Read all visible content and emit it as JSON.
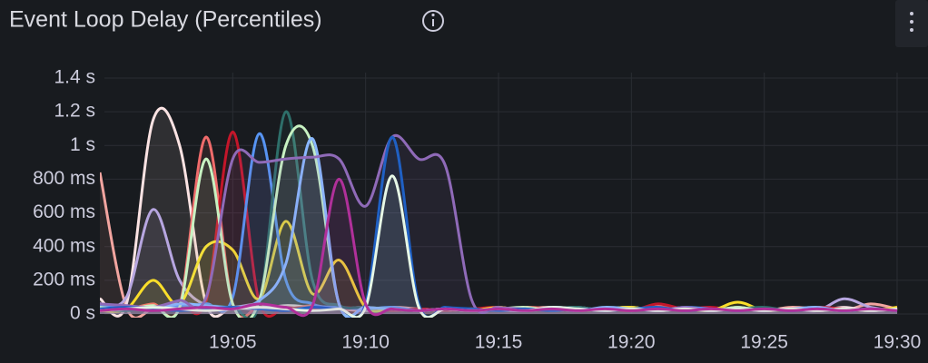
{
  "chart_data": {
    "type": "line",
    "title": "Event Loop Delay (Percentiles)",
    "x": [
      "19:00",
      "19:01",
      "19:02",
      "19:03",
      "19:04",
      "19:05",
      "19:06",
      "19:07",
      "19:08",
      "19:09",
      "19:10",
      "19:11",
      "19:12",
      "19:13",
      "19:14",
      "19:15",
      "19:16",
      "19:17",
      "19:18",
      "19:19",
      "19:20",
      "19:21",
      "19:22",
      "19:23",
      "19:24",
      "19:25",
      "19:26",
      "19:27",
      "19:28",
      "19:29",
      "19:30"
    ],
    "xticks": [
      "19:05",
      "19:10",
      "19:15",
      "19:20",
      "19:25",
      "19:30"
    ],
    "ylim": [
      0,
      1400
    ],
    "yticks": [
      {
        "value": 0,
        "label": "0 s"
      },
      {
        "value": 200,
        "label": "200 ms"
      },
      {
        "value": 400,
        "label": "400 ms"
      },
      {
        "value": 600,
        "label": "600 ms"
      },
      {
        "value": 800,
        "label": "800 ms"
      },
      {
        "value": 1000,
        "label": "1 s"
      },
      {
        "value": 1200,
        "label": "1.2 s"
      },
      {
        "value": 1400,
        "label": "1.4 s"
      }
    ],
    "grid": true,
    "series": [
      {
        "color": "#f2a5a0",
        "values": [
          840,
          40,
          30,
          60,
          40,
          30,
          50,
          30,
          40,
          30,
          20,
          40,
          30,
          20,
          30,
          20,
          30,
          40,
          20,
          30,
          20,
          50,
          30,
          20,
          30,
          20,
          40,
          30,
          20,
          60,
          30
        ]
      },
      {
        "color": "#fbe3e3",
        "values": [
          90,
          60,
          1150,
          1000,
          60,
          40,
          30,
          50,
          40,
          30,
          20,
          30,
          20,
          30,
          20,
          40,
          20,
          30,
          20,
          30,
          40,
          20,
          30,
          20,
          30,
          20,
          30,
          20,
          40,
          20,
          30
        ]
      },
      {
        "color": "#b7a6e0",
        "values": [
          60,
          100,
          620,
          200,
          50,
          40,
          60,
          30,
          40,
          30,
          40,
          20,
          30,
          20,
          30,
          20,
          20,
          30,
          40,
          20,
          30,
          20,
          30,
          20,
          40,
          20,
          30,
          20,
          90,
          40,
          20
        ]
      },
      {
        "color": "#ef6b6b",
        "values": [
          40,
          30,
          60,
          50,
          1050,
          60,
          40,
          30,
          50,
          30,
          40,
          20,
          30,
          20,
          30,
          20,
          40,
          30,
          20,
          30,
          20,
          40,
          30,
          20,
          30,
          20,
          30,
          20,
          30,
          20,
          40
        ]
      },
      {
        "color": "#c4162a",
        "values": [
          30,
          40,
          30,
          60,
          80,
          1080,
          70,
          40,
          30,
          40,
          30,
          20,
          30,
          20,
          30,
          40,
          20,
          30,
          20,
          30,
          20,
          60,
          30,
          40,
          20,
          30,
          20,
          40,
          30,
          20,
          30
        ]
      },
      {
        "color": "#fade2a",
        "values": [
          20,
          30,
          200,
          60,
          400,
          380,
          90,
          550,
          120,
          320,
          40,
          30,
          20,
          30,
          20,
          40,
          20,
          30,
          20,
          30,
          40,
          20,
          30,
          20,
          70,
          20,
          30,
          20,
          30,
          20,
          40
        ]
      },
      {
        "color": "#5794f2",
        "values": [
          50,
          40,
          30,
          50,
          60,
          100,
          1070,
          200,
          60,
          40,
          30,
          40,
          20,
          30,
          20,
          30,
          20,
          40,
          30,
          20,
          30,
          20,
          40,
          30,
          20,
          30,
          20,
          30,
          20,
          30,
          20
        ]
      },
      {
        "color": "#2e6f6a",
        "values": [
          30,
          20,
          40,
          30,
          50,
          40,
          60,
          1200,
          200,
          50,
          40,
          30,
          20,
          30,
          20,
          30,
          20,
          30,
          40,
          20,
          30,
          20,
          30,
          20,
          30,
          40,
          20,
          30,
          20,
          30,
          20
        ]
      },
      {
        "color": "#c8f2c2",
        "values": [
          40,
          30,
          50,
          40,
          920,
          60,
          80,
          1000,
          1000,
          60,
          40,
          30,
          20,
          30,
          20,
          30,
          40,
          20,
          30,
          20,
          30,
          20,
          30,
          20,
          40,
          20,
          30,
          20,
          30,
          20,
          30
        ]
      },
      {
        "color": "#8ab8ff",
        "values": [
          30,
          40,
          30,
          60,
          50,
          40,
          80,
          300,
          1040,
          60,
          40,
          30,
          20,
          30,
          20,
          30,
          20,
          30,
          20,
          40,
          30,
          20,
          30,
          20,
          30,
          20,
          30,
          40,
          20,
          30,
          20
        ]
      },
      {
        "color": "#8f6ab8",
        "values": [
          60,
          50,
          40,
          80,
          100,
          920,
          900,
          920,
          930,
          920,
          640,
          1050,
          920,
          880,
          80,
          40,
          30,
          20,
          30,
          20,
          30,
          20,
          40,
          20,
          30,
          20,
          30,
          20,
          30,
          20,
          30
        ]
      },
      {
        "color": "#1f60c4",
        "values": [
          30,
          40,
          30,
          20,
          30,
          40,
          30,
          20,
          40,
          30,
          60,
          1050,
          60,
          40,
          30,
          20,
          30,
          20,
          30,
          20,
          30,
          40,
          20,
          30,
          20,
          30,
          20,
          30,
          20,
          30,
          20
        ]
      },
      {
        "color": "#e6f7e6",
        "values": [
          20,
          30,
          40,
          30,
          20,
          30,
          40,
          30,
          20,
          30,
          40,
          820,
          40,
          30,
          20,
          30,
          20,
          40,
          30,
          20,
          30,
          20,
          30,
          20,
          30,
          20,
          30,
          20,
          30,
          20,
          30
        ]
      },
      {
        "color": "#b0309a",
        "values": [
          20,
          30,
          20,
          30,
          40,
          30,
          60,
          40,
          50,
          800,
          60,
          30,
          20,
          30,
          20,
          30,
          20,
          30,
          20,
          30,
          20,
          30,
          20,
          30,
          20,
          30,
          20,
          30,
          20,
          30,
          20
        ]
      }
    ]
  }
}
